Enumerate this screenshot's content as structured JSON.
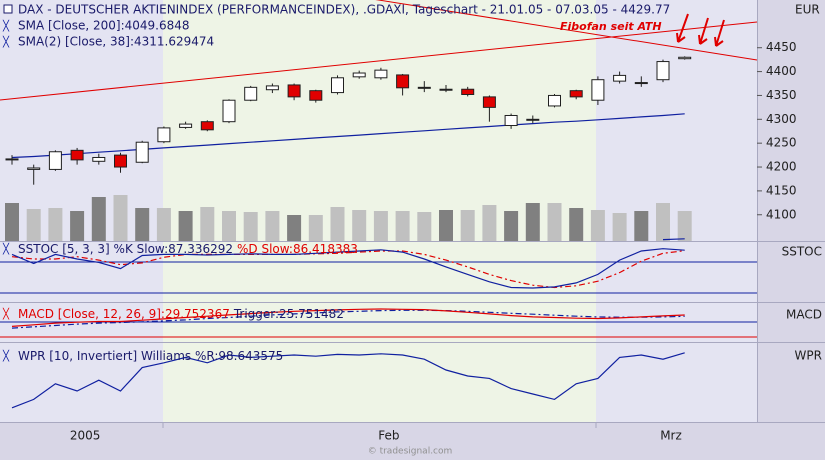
{
  "chart_data": {
    "type": "candlestick",
    "title": "DAX - DEUTSCHER AKTIENINDEX (PERFORMANCEINDEX), .GDAXI, Tageschart - 21.01.05 - 07.03.05 - 4429.77",
    "currency": "EUR",
    "annotation": "Fibofan seit ATH",
    "footer": "© tradesignal.com",
    "categories": [
      null,
      null,
      null,
      "2005",
      null,
      null,
      null,
      null,
      null,
      null,
      null,
      null,
      null,
      null,
      null,
      null,
      null,
      "Feb",
      null,
      null,
      null,
      null,
      null,
      null,
      null,
      null,
      null,
      null,
      null,
      null,
      "Mrz",
      null
    ],
    "open": [
      4215,
      4195,
      4195,
      4235,
      4212,
      4225,
      4210,
      4253,
      4283,
      4295,
      4295,
      4340,
      4362,
      4372,
      4360,
      4356,
      4389,
      4387,
      4393,
      4367,
      4363,
      4363,
      4347,
      4287,
      4300,
      4328,
      4360,
      4340,
      4380,
      4377,
      4383,
      4427
    ],
    "close": [
      4217,
      4198,
      4232,
      4215,
      4220,
      4200,
      4252,
      4282,
      4290,
      4278,
      4340,
      4367,
      4370,
      4347,
      4340,
      4387,
      4397,
      4403,
      4366,
      4367,
      4363,
      4352,
      4325,
      4308,
      4300,
      4350,
      4347,
      4383,
      4392,
      4377,
      4421,
      4430
    ],
    "high": [
      4225,
      4205,
      4235,
      4240,
      4228,
      4230,
      4255,
      4285,
      4295,
      4298,
      4342,
      4370,
      4375,
      4375,
      4362,
      4392,
      4402,
      4408,
      4395,
      4380,
      4372,
      4368,
      4350,
      4312,
      4308,
      4353,
      4362,
      4390,
      4400,
      4390,
      4425,
      4432
    ],
    "low": [
      4205,
      4163,
      4192,
      4205,
      4205,
      4188,
      4208,
      4250,
      4280,
      4275,
      4292,
      4338,
      4355,
      4340,
      4335,
      4352,
      4385,
      4383,
      4350,
      4357,
      4357,
      4348,
      4295,
      4280,
      4292,
      4325,
      4342,
      4330,
      4375,
      4368,
      4378,
      4425
    ],
    "up_color": "#ffffff",
    "down_color": "#e00000",
    "ylim": [
      4045,
      4550
    ],
    "yticks": [
      4100,
      4150,
      4200,
      4250,
      4300,
      4350,
      4400,
      4450
    ],
    "overlays": [
      {
        "name": "SMA [Close, 200]:4049.6848",
        "color": "#1020a0",
        "values": [
          null,
          null,
          null,
          null,
          null,
          null,
          null,
          null,
          null,
          null,
          null,
          null,
          null,
          null,
          null,
          null,
          null,
          null,
          null,
          null,
          null,
          null,
          null,
          null,
          null,
          null,
          null,
          null,
          null,
          null,
          4048,
          4049.6848
        ]
      },
      {
        "name": "SMA(2) [Close, 38]:4311.629474",
        "color": "#1020a0",
        "values": [
          4220,
          4222,
          4225,
          4228,
          4231,
          4234,
          4237,
          4240,
          4243,
          4246,
          4249,
          4252,
          4255,
          4258,
          4261,
          4264,
          4267,
          4270,
          4273,
          4276,
          4279,
          4282,
          4285,
          4288,
          4291,
          4294,
          4296,
          4299,
          4302,
          4305,
          4308,
          4311.629474
        ]
      }
    ],
    "volume": {
      "ylim": [
        0,
        50
      ],
      "values": [
        38,
        32,
        33,
        30,
        44,
        46,
        33,
        33,
        30,
        34,
        30,
        29,
        30,
        26,
        26,
        34,
        31,
        30,
        30,
        29,
        31,
        31,
        36,
        30,
        38,
        38,
        33,
        31,
        28,
        30,
        38,
        30
      ],
      "colors": [
        "#808080",
        "#c0c0c0",
        "#c0c0c0",
        "#808080",
        "#808080",
        "#c0c0c0",
        "#808080",
        "#c0c0c0",
        "#808080",
        "#c0c0c0",
        "#c0c0c0",
        "#c0c0c0",
        "#c0c0c0",
        "#808080",
        "#c0c0c0",
        "#c0c0c0",
        "#c0c0c0",
        "#c0c0c0",
        "#c0c0c0",
        "#c0c0c0",
        "#808080",
        "#c0c0c0",
        "#c0c0c0",
        "#808080",
        "#808080",
        "#c0c0c0",
        "#808080",
        "#c0c0c0",
        "#c0c0c0",
        "#808080",
        "#c0c0c0",
        "#c0c0c0"
      ]
    },
    "indicators": [
      {
        "name": "SSTOC",
        "label": "SSTOC [5, 3, 3] %K Slow:87.336292",
        "ylim": [
          0,
          100
        ],
        "series": [
          {
            "name": "%D Slow:86.418383",
            "color": "#e00000",
            "dashed": true,
            "values": [
              76,
              72,
              72,
              76,
              70,
              62,
              65,
              75,
              80,
              80,
              80,
              80,
              80,
              80,
              81,
              82,
              84,
              86,
              86,
              80,
              70,
              58,
              45,
              34,
              26,
              22,
              25,
              33,
              48,
              68,
              82,
              86.418383
            ]
          },
          {
            "name": "%K Slow",
            "color": "#1020a0",
            "dashed": false,
            "values": [
              80,
              64,
              80,
              72,
              66,
              55,
              78,
              80,
              80,
              79,
              80,
              81,
              80,
              80,
              82,
              84,
              86,
              88,
              84,
              72,
              58,
              45,
              32,
              22,
              21,
              23,
              30,
              45,
              70,
              86,
              90,
              87.336292
            ]
          }
        ]
      },
      {
        "name": "MACD",
        "label": "MACD [Close, 12, 26, 9]:29.752367",
        "ylim": [
          -40,
          60
        ],
        "series": [
          {
            "name": "Trigger:25.751482",
            "color": "#1020a0",
            "dashed": true,
            "values": [
              -10,
              -6,
              -2,
              2,
              5,
              7,
              9,
              12,
              15,
              19,
              22,
              26,
              30,
              33,
              36,
              39,
              41,
              43,
              44,
              44,
              43,
              41,
              38,
              35,
              32,
              29,
              26,
              24,
              23,
              23,
              24,
              25.751482
            ]
          },
          {
            "name": "MACD",
            "color": "#e00000",
            "dashed": false,
            "values": [
              -5,
              0,
              5,
              8,
              10,
              10,
              14,
              18,
              22,
              26,
              30,
              34,
              38,
              41,
              43,
              45,
              47,
              48,
              47,
              46,
              42,
              38,
              33,
              28,
              24,
              22,
              20,
              19,
              21,
              24,
              27,
              29.752367
            ]
          }
        ]
      },
      {
        "name": "WPR",
        "label": "WPR [10, Invertiert] Williams %R:98.643575",
        "ylim": [
          0,
          100
        ],
        "series": [
          {
            "name": "Williams %R",
            "color": "#1020a0",
            "dashed": false,
            "values": [
              7,
              21,
              47,
              35,
              53,
              35,
              74,
              82,
              91,
              82,
              95,
              91,
              93,
              95,
              93,
              96,
              95,
              97,
              95,
              88,
              70,
              60,
              56,
              39,
              30,
              21,
              47,
              56,
              91,
              95,
              88,
              98.643575
            ]
          }
        ]
      }
    ]
  }
}
